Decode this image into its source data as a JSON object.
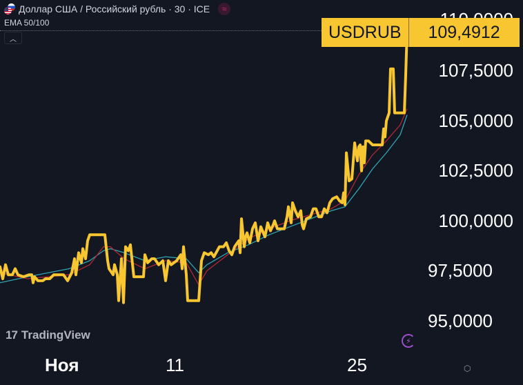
{
  "header": {
    "title": "Доллар США / Российский рубль · 30 · ICE",
    "indicator": "EMA 50/100",
    "collapse_icon": "chevron-up-icon",
    "status_icon": "approx-icon",
    "flag_icon": "us-ru-flags-icon"
  },
  "price_tag": {
    "symbol": "USDRUB",
    "value": "109,4912",
    "color": "#f7c631"
  },
  "price_axis": {
    "ticks": [
      "110,0000",
      "107,5000",
      "105,0000",
      "102,5000",
      "100,0000",
      "97,5000",
      "95,0000"
    ]
  },
  "time_axis": {
    "labels": [
      "Ноя",
      "11",
      "25"
    ]
  },
  "branding": {
    "logo_mark": "17",
    "logo_text": "TradingView"
  },
  "icons": {
    "bolt": "lightning-icon",
    "settings": "settings-hex-icon"
  },
  "colors": {
    "background": "#131722",
    "price": "#f7c631",
    "ema50": "#b22833",
    "ema100": "#2fa5b5"
  },
  "chart_data": {
    "type": "line",
    "title": "Доллар США / Российский рубль · 30 · ICE",
    "xlabel": "",
    "ylabel": "",
    "ylim": [
      94.7,
      110.3
    ],
    "grid": false,
    "legend_position": "top-left",
    "x_tick_labels": [
      "Ноя",
      "11",
      "25"
    ],
    "y_tick_labels": [
      "110,0000",
      "107,5000",
      "105,0000",
      "102,5000",
      "100,0000",
      "97,5000",
      "95,0000"
    ],
    "last_value": 109.4912,
    "series": [
      {
        "name": "USDRUB",
        "color": "#f7c631",
        "points": [
          [
            0,
            97.7
          ],
          [
            4,
            97.1
          ],
          [
            8,
            97.8
          ],
          [
            12,
            97.3
          ],
          [
            18,
            97.3
          ],
          [
            22,
            97.6
          ],
          [
            26,
            97.3
          ],
          [
            34,
            97.2
          ],
          [
            42,
            97.3
          ],
          [
            46,
            97.3
          ],
          [
            48,
            96.9
          ],
          [
            50,
            97.2
          ],
          [
            55,
            97.0
          ],
          [
            62,
            97.0
          ],
          [
            66,
            97.1
          ],
          [
            72,
            97.1
          ],
          [
            78,
            97.3
          ],
          [
            86,
            97.3
          ],
          [
            92,
            97.3
          ],
          [
            98,
            97.0
          ],
          [
            104,
            97.4
          ],
          [
            108,
            98.1
          ],
          [
            110,
            97.3
          ],
          [
            114,
            98.4
          ],
          [
            118,
            97.9
          ],
          [
            120,
            98.6
          ],
          [
            124,
            98.1
          ],
          [
            127,
            99.0
          ],
          [
            130,
            99.3
          ],
          [
            140,
            99.3
          ],
          [
            152,
            99.3
          ],
          [
            156,
            98.0
          ],
          [
            158,
            97.6
          ],
          [
            164,
            97.3
          ],
          [
            166,
            97.8
          ],
          [
            170,
            97.3
          ],
          [
            172,
            96.0
          ],
          [
            176,
            98.1
          ],
          [
            179,
            95.9
          ],
          [
            182,
            98.7
          ],
          [
            186,
            98.5
          ],
          [
            189,
            98.8
          ],
          [
            194,
            97.2
          ],
          [
            200,
            97.2
          ],
          [
            208,
            97.2
          ],
          [
            210,
            98.3
          ],
          [
            214,
            97.9
          ],
          [
            220,
            98.1
          ],
          [
            224,
            98.1
          ],
          [
            230,
            97.8
          ],
          [
            236,
            98.0
          ],
          [
            240,
            97.0
          ],
          [
            244,
            98.0
          ],
          [
            248,
            97.8
          ],
          [
            256,
            98.0
          ],
          [
            262,
            98.3
          ],
          [
            264,
            97.6
          ],
          [
            266,
            98.7
          ],
          [
            270,
            97.3
          ],
          [
            272,
            96.0
          ],
          [
            282,
            96.0
          ],
          [
            288,
            96.0
          ],
          [
            292,
            98.0
          ],
          [
            296,
            98.4
          ],
          [
            302,
            98.3
          ],
          [
            306,
            98.4
          ],
          [
            310,
            98.2
          ],
          [
            318,
            98.7
          ],
          [
            324,
            98.7
          ],
          [
            328,
            98.9
          ],
          [
            332,
            98.5
          ],
          [
            336,
            98.3
          ],
          [
            340,
            98.7
          ],
          [
            346,
            99.0
          ],
          [
            348,
            98.4
          ],
          [
            350,
            100.1
          ],
          [
            354,
            98.7
          ],
          [
            356,
            99.2
          ],
          [
            358,
            99.4
          ],
          [
            362,
            98.9
          ],
          [
            366,
            99.6
          ],
          [
            370,
            99.9
          ],
          [
            374,
            99.0
          ],
          [
            378,
            99.7
          ],
          [
            384,
            99.2
          ],
          [
            388,
            99.9
          ],
          [
            392,
            99.5
          ],
          [
            396,
            99.8
          ],
          [
            398,
            100.0
          ],
          [
            402,
            99.6
          ],
          [
            408,
            99.6
          ],
          [
            412,
            99.6
          ],
          [
            416,
            100.2
          ],
          [
            418,
            100.7
          ],
          [
            422,
            99.9
          ],
          [
            424,
            100.9
          ],
          [
            428,
            100.5
          ],
          [
            432,
            100.2
          ],
          [
            436,
            100.5
          ],
          [
            438,
            99.8
          ],
          [
            440,
            99.6
          ],
          [
            444,
            100.1
          ],
          [
            450,
            100.2
          ],
          [
            454,
            100.6
          ],
          [
            458,
            100.6
          ],
          [
            462,
            100.2
          ],
          [
            466,
            100.2
          ],
          [
            470,
            100.6
          ],
          [
            474,
            100.4
          ],
          [
            478,
            100.9
          ],
          [
            482,
            101.1
          ],
          [
            488,
            101.2
          ],
          [
            492,
            101.0
          ],
          [
            496,
            100.9
          ],
          [
            498,
            101.4
          ],
          [
            500,
            100.8
          ],
          [
            502,
            103.4
          ],
          [
            506,
            102.0
          ],
          [
            510,
            102.1
          ],
          [
            514,
            103.9
          ],
          [
            518,
            103.0
          ],
          [
            520,
            103.7
          ],
          [
            522,
            103.8
          ],
          [
            524,
            102.5
          ],
          [
            526,
            103.7
          ],
          [
            528,
            102.9
          ],
          [
            530,
            104.0
          ],
          [
            534,
            104.0
          ],
          [
            540,
            103.8
          ],
          [
            548,
            103.8
          ],
          [
            554,
            103.8
          ],
          [
            556,
            104.6
          ],
          [
            558,
            104.2
          ],
          [
            560,
            105.0
          ],
          [
            564,
            105.4
          ],
          [
            566,
            107.6
          ],
          [
            570,
            107.6
          ],
          [
            572,
            105.4
          ],
          [
            580,
            105.4
          ],
          [
            586,
            105.4
          ],
          [
            588,
            107.3
          ],
          [
            590,
            109.5
          ]
        ]
      },
      {
        "name": "EMA 50",
        "color": "#b22833",
        "points": [
          [
            0,
            97.4
          ],
          [
            40,
            97.1
          ],
          [
            100,
            97.3
          ],
          [
            130,
            97.8
          ],
          [
            150,
            98.7
          ],
          [
            160,
            98.7
          ],
          [
            180,
            98.1
          ],
          [
            210,
            97.6
          ],
          [
            240,
            98.0
          ],
          [
            270,
            97.9
          ],
          [
            288,
            96.8
          ],
          [
            300,
            97.5
          ],
          [
            330,
            98.3
          ],
          [
            360,
            99.1
          ],
          [
            390,
            99.6
          ],
          [
            420,
            100.0
          ],
          [
            450,
            100.3
          ],
          [
            480,
            100.6
          ],
          [
            500,
            101.0
          ],
          [
            520,
            102.3
          ],
          [
            540,
            103.3
          ],
          [
            560,
            104.0
          ],
          [
            580,
            104.8
          ],
          [
            590,
            105.6
          ]
        ]
      },
      {
        "name": "EMA 100",
        "color": "#2fa5b5",
        "points": [
          [
            0,
            96.9
          ],
          [
            40,
            97.2
          ],
          [
            100,
            97.6
          ],
          [
            130,
            98.0
          ],
          [
            150,
            98.5
          ],
          [
            160,
            98.6
          ],
          [
            180,
            98.4
          ],
          [
            210,
            98.0
          ],
          [
            240,
            98.2
          ],
          [
            270,
            98.1
          ],
          [
            288,
            97.4
          ],
          [
            300,
            97.8
          ],
          [
            330,
            98.4
          ],
          [
            360,
            98.8
          ],
          [
            390,
            99.3
          ],
          [
            420,
            99.7
          ],
          [
            450,
            100.1
          ],
          [
            480,
            100.5
          ],
          [
            500,
            100.7
          ],
          [
            520,
            101.6
          ],
          [
            540,
            102.6
          ],
          [
            560,
            103.4
          ],
          [
            580,
            104.3
          ],
          [
            590,
            105.3
          ]
        ]
      }
    ]
  }
}
